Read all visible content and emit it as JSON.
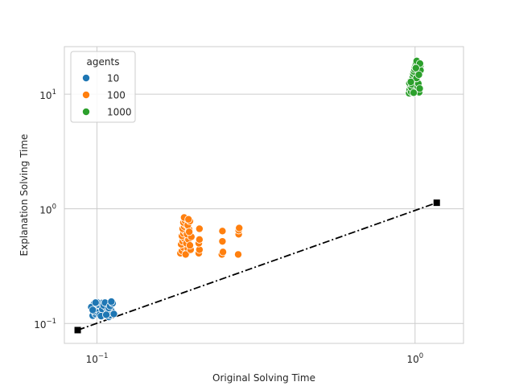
{
  "chart_data": {
    "type": "scatter",
    "xlabel": "Original Solving Time",
    "ylabel": "Explanation Solving Time",
    "xscale": "log",
    "yscale": "log",
    "xlim": [
      0.079,
      1.42
    ],
    "ylim": [
      0.067,
      26
    ],
    "grid": true,
    "legend": {
      "title": "agents",
      "placement": "top-left"
    },
    "x_ticks": [
      {
        "value": 0.1,
        "base": "10",
        "exp": "−1"
      },
      {
        "value": 1,
        "base": "10",
        "exp": "0"
      }
    ],
    "y_ticks": [
      {
        "value": 0.1,
        "base": "10",
        "exp": "−1"
      },
      {
        "value": 1,
        "base": "10",
        "exp": "0"
      },
      {
        "value": 10,
        "base": "10",
        "exp": "1"
      }
    ],
    "series": [
      {
        "name": "10",
        "color": "#1f77b4",
        "points": [
          [
            0.097,
            0.117
          ],
          [
            0.099,
            0.121
          ],
          [
            0.101,
            0.125
          ],
          [
            0.098,
            0.128
          ],
          [
            0.102,
            0.131
          ],
          [
            0.1,
            0.134
          ],
          [
            0.097,
            0.137
          ],
          [
            0.103,
            0.14
          ],
          [
            0.099,
            0.143
          ],
          [
            0.101,
            0.146
          ],
          [
            0.098,
            0.149
          ],
          [
            0.104,
            0.151
          ],
          [
            0.1,
            0.153
          ],
          [
            0.102,
            0.119
          ],
          [
            0.105,
            0.123
          ],
          [
            0.106,
            0.127
          ],
          [
            0.104,
            0.133
          ],
          [
            0.107,
            0.138
          ],
          [
            0.105,
            0.144
          ],
          [
            0.108,
            0.148
          ],
          [
            0.106,
            0.152
          ],
          [
            0.109,
            0.114
          ],
          [
            0.11,
            0.118
          ],
          [
            0.108,
            0.124
          ],
          [
            0.111,
            0.129
          ],
          [
            0.109,
            0.136
          ],
          [
            0.11,
            0.142
          ],
          [
            0.112,
            0.15
          ],
          [
            0.111,
            0.155
          ],
          [
            0.113,
            0.121
          ],
          [
            0.096,
            0.139
          ],
          [
            0.097,
            0.131
          ],
          [
            0.099,
            0.152
          ],
          [
            0.103,
            0.116
          ],
          [
            0.107,
            0.119
          ]
        ]
      },
      {
        "name": "100",
        "color": "#ff7f0e",
        "points": [
          [
            0.183,
            0.41
          ],
          [
            0.185,
            0.43
          ],
          [
            0.187,
            0.46
          ],
          [
            0.184,
            0.49
          ],
          [
            0.186,
            0.52
          ],
          [
            0.188,
            0.55
          ],
          [
            0.185,
            0.58
          ],
          [
            0.187,
            0.61
          ],
          [
            0.189,
            0.64
          ],
          [
            0.186,
            0.67
          ],
          [
            0.188,
            0.7
          ],
          [
            0.19,
            0.73
          ],
          [
            0.187,
            0.76
          ],
          [
            0.189,
            0.79
          ],
          [
            0.191,
            0.82
          ],
          [
            0.188,
            0.84
          ],
          [
            0.192,
            0.42
          ],
          [
            0.193,
            0.45
          ],
          [
            0.191,
            0.5
          ],
          [
            0.194,
            0.54
          ],
          [
            0.192,
            0.6
          ],
          [
            0.195,
            0.66
          ],
          [
            0.193,
            0.72
          ],
          [
            0.196,
            0.78
          ],
          [
            0.194,
            0.81
          ],
          [
            0.19,
            0.4
          ],
          [
            0.197,
            0.44
          ],
          [
            0.196,
            0.48
          ],
          [
            0.198,
            0.57
          ],
          [
            0.195,
            0.63
          ],
          [
            0.209,
            0.41
          ],
          [
            0.21,
            0.44
          ],
          [
            0.209,
            0.5
          ],
          [
            0.21,
            0.54
          ],
          [
            0.21,
            0.67
          ],
          [
            0.247,
            0.4
          ],
          [
            0.249,
            0.42
          ],
          [
            0.248,
            0.52
          ],
          [
            0.248,
            0.64
          ],
          [
            0.278,
            0.4
          ],
          [
            0.279,
            0.6
          ],
          [
            0.279,
            0.65
          ],
          [
            0.28,
            0.68
          ]
        ]
      },
      {
        "name": "1000",
        "color": "#2ca02c",
        "points": [
          [
            0.958,
            10.2
          ],
          [
            0.962,
            11.0
          ],
          [
            0.966,
            11.8
          ],
          [
            0.96,
            12.5
          ],
          [
            0.968,
            13.0
          ],
          [
            0.972,
            10.5
          ],
          [
            0.975,
            11.4
          ],
          [
            0.978,
            12.2
          ],
          [
            0.98,
            13.5
          ],
          [
            0.984,
            14.2
          ],
          [
            0.988,
            15.0
          ],
          [
            0.992,
            15.8
          ],
          [
            0.996,
            16.5
          ],
          [
            1.0,
            17.2
          ],
          [
            1.004,
            18.0
          ],
          [
            1.008,
            18.8
          ],
          [
            1.012,
            19.5
          ],
          [
            1.016,
            10.8
          ],
          [
            1.02,
            11.6
          ],
          [
            1.024,
            12.4
          ],
          [
            1.03,
            10.4
          ],
          [
            1.034,
            11.2
          ],
          [
            1.038,
            17.5
          ],
          [
            1.04,
            16.2
          ],
          [
            1.036,
            18.5
          ],
          [
            0.99,
            10.3
          ],
          [
            1.01,
            13.8
          ],
          [
            1.028,
            14.8
          ],
          [
            0.97,
            12.8
          ],
          [
            1.006,
            16.9
          ]
        ]
      }
    ],
    "reference_line": {
      "style": "dash-dot",
      "color": "#000000",
      "points": [
        [
          0.087,
          0.0875
        ],
        [
          1.17,
          1.13
        ]
      ]
    }
  }
}
